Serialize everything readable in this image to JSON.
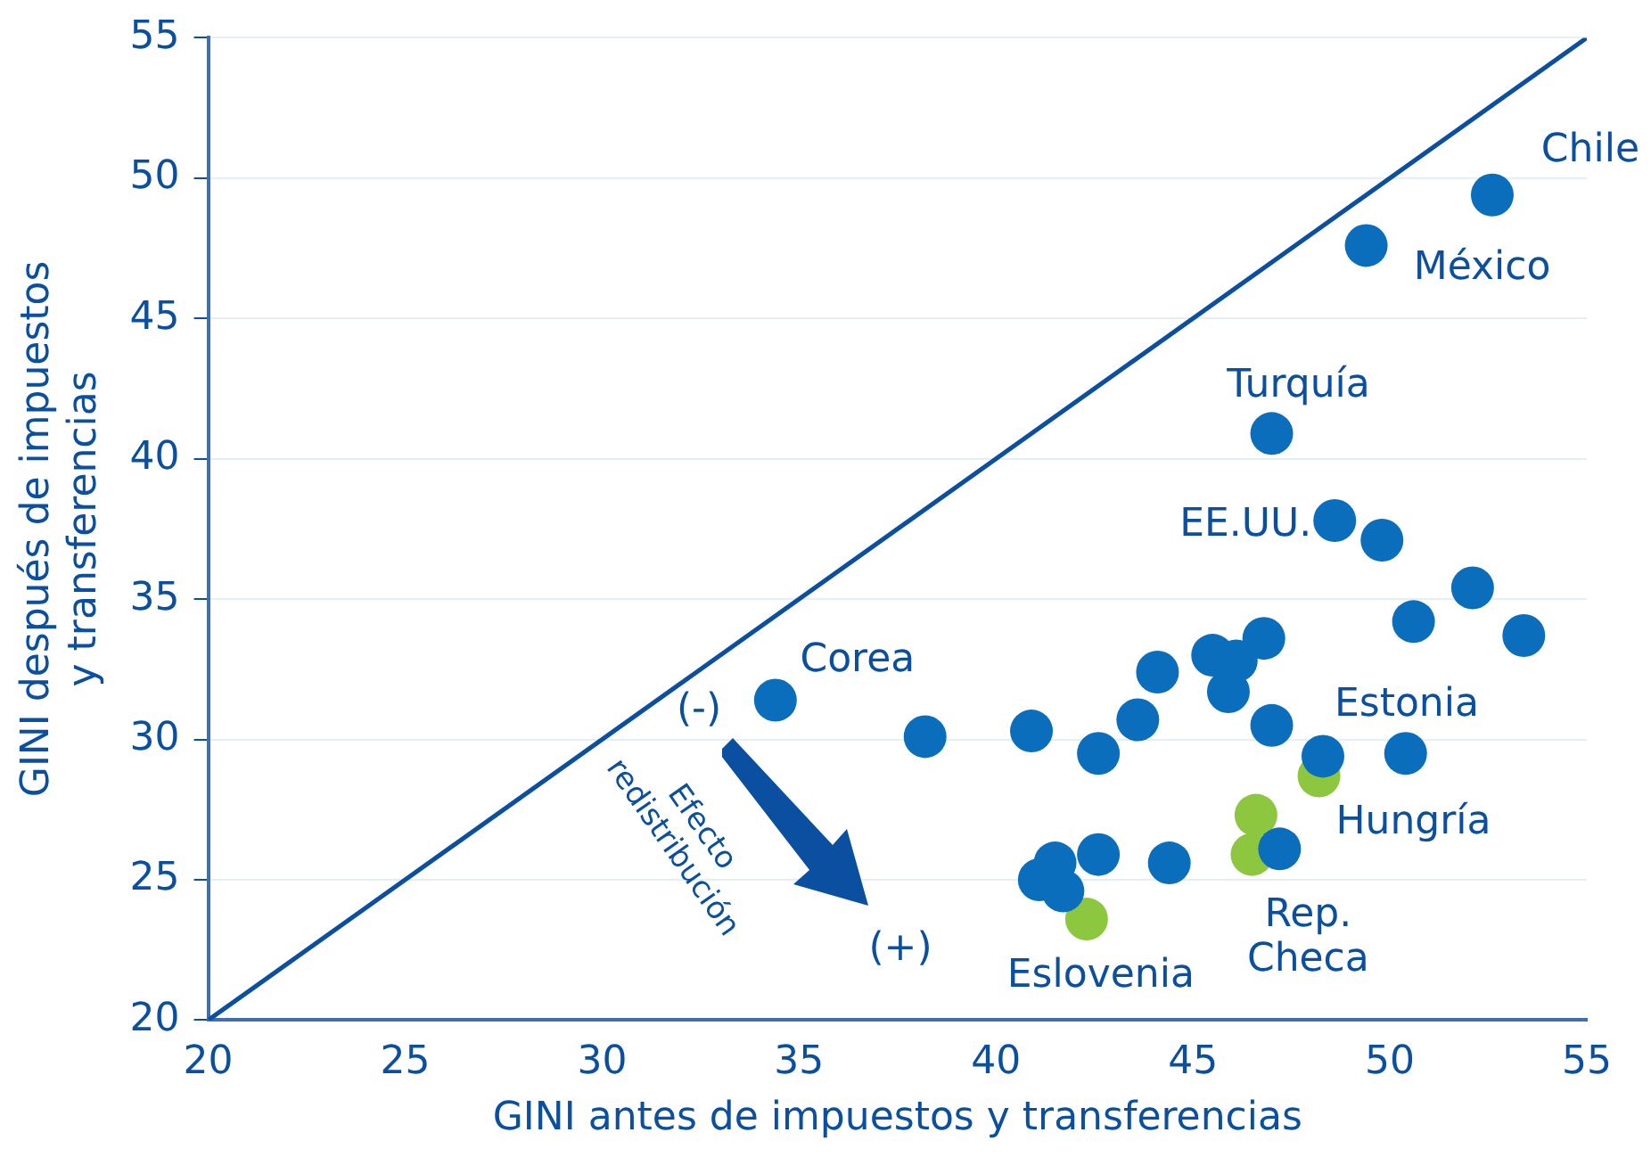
{
  "chart_data": {
    "type": "scatter",
    "xlabel": "GINI antes de impuestos y transferencias",
    "ylabel": "GINI después de impuestos y transferencias",
    "xlim": [
      20,
      55
    ],
    "ylim": [
      20,
      55
    ],
    "xticks": [
      20,
      25,
      30,
      35,
      40,
      45,
      50,
      55
    ],
    "yticks": [
      20,
      25,
      30,
      35,
      40,
      45,
      50,
      55
    ],
    "grid": "y",
    "legend": false,
    "marker": "circle",
    "series": [
      {
        "type": "line",
        "color": "#0b4fa0",
        "x": [
          20,
          55
        ],
        "values": [
          20,
          55
        ],
        "marker": "none"
      },
      {
        "color": "#0a6ebd",
        "x": [
          52.6,
          49.4,
          47.0,
          48.6,
          49.8,
          52.1,
          50.6,
          53.4,
          34.4,
          38.2,
          40.9,
          42.6,
          43.6,
          44.1,
          45.5,
          46.1,
          46.8,
          45.9,
          47.0,
          48.3,
          50.4,
          41.5,
          41.7,
          42.6,
          44.4,
          47.2,
          41.1
        ],
        "values": [
          49.4,
          47.6,
          40.9,
          37.8,
          37.1,
          35.4,
          34.2,
          33.7,
          31.4,
          30.1,
          30.3,
          29.5,
          30.7,
          32.4,
          33.0,
          32.8,
          33.6,
          31.7,
          30.5,
          29.4,
          29.5,
          25.6,
          24.6,
          25.9,
          25.6,
          26.1,
          25.0
        ]
      },
      {
        "color": "#8dc63f",
        "x": [
          42.3,
          46.6,
          46.5,
          48.2
        ],
        "values": [
          23.6,
          27.3,
          25.9,
          28.7
        ]
      }
    ],
    "annotations": [
      {
        "text": "Chile",
        "x": 52.6,
        "y": 49.4
      },
      {
        "text": "México",
        "x": 49.4,
        "y": 47.6
      },
      {
        "text": "Turquía",
        "x": 47.0,
        "y": 40.9
      },
      {
        "text": "EE.UU.",
        "x": 48.6,
        "y": 37.8
      },
      {
        "text": "Corea",
        "x": 34.4,
        "y": 31.4
      },
      {
        "text": "Estonia",
        "x": 48.3,
        "y": 29.4
      },
      {
        "text": "Hungría",
        "x": 48.2,
        "y": 28.7
      },
      {
        "text": "Rep. Checa",
        "x": 47.2,
        "y": 26.1
      },
      {
        "text": "Eslovenia",
        "x": 42.3,
        "y": 23.6
      },
      "(-)",
      "(+)",
      "Efecto redistribución"
    ]
  }
}
